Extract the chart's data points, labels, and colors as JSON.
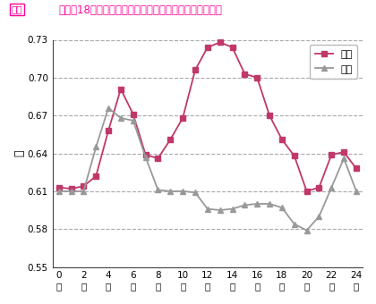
{
  "title": "グラフ18　時間帯別レスポンス平均速度［平日と土日］",
  "title_prefix": "全体",
  "ylabel": "秒",
  "hours": [
    0,
    1,
    2,
    3,
    4,
    5,
    6,
    7,
    8,
    9,
    10,
    11,
    12,
    13,
    14,
    15,
    16,
    17,
    18,
    19,
    20,
    21,
    22,
    23,
    24
  ],
  "weekday": [
    0.613,
    0.612,
    0.614,
    0.622,
    0.658,
    0.691,
    0.671,
    0.639,
    0.636,
    0.651,
    0.668,
    0.706,
    0.724,
    0.728,
    0.724,
    0.703,
    0.7,
    0.67,
    0.651,
    0.638,
    0.61,
    0.613,
    0.639,
    0.641,
    0.628
  ],
  "weekend": [
    0.61,
    0.61,
    0.61,
    0.645,
    0.676,
    0.668,
    0.666,
    0.637,
    0.611,
    0.61,
    0.61,
    0.609,
    0.596,
    0.595,
    0.596,
    0.599,
    0.6,
    0.6,
    0.597,
    0.584,
    0.579,
    0.59,
    0.613,
    0.636,
    0.61
  ],
  "weekday_color": "#c0386a",
  "weekend_color": "#999999",
  "ylim": [
    0.55,
    0.73
  ],
  "yticks": [
    0.55,
    0.58,
    0.61,
    0.64,
    0.67,
    0.7,
    0.73
  ],
  "xtick_labels": [
    "0\n時",
    "2\n時",
    "4\n時",
    "6\n時",
    "8\n時",
    "10\n時",
    "12\n時",
    "14\n時",
    "16\n時",
    "18\n時",
    "20\n時",
    "22\n時",
    "24\n時"
  ],
  "xtick_positions": [
    0,
    2,
    4,
    6,
    8,
    10,
    12,
    14,
    16,
    18,
    20,
    22,
    24
  ],
  "grid_color": "#aaaaaa",
  "background": "#ffffff",
  "legend_weekday": "平日",
  "legend_weekend": "土日",
  "title_color": "#ff0099"
}
